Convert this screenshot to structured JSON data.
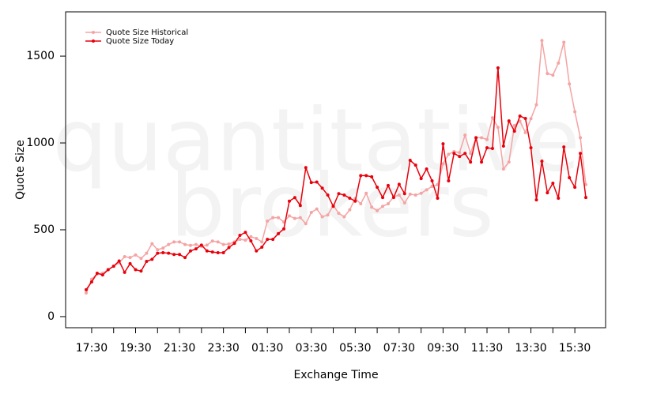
{
  "chart_data": {
    "type": "line",
    "xlabel": "Exchange Time",
    "ylabel": "Quote Size",
    "watermark": [
      "quantitative",
      "brokers"
    ],
    "categories": [
      "17:15",
      "17:30",
      "17:45",
      "18:00",
      "18:15",
      "18:30",
      "18:45",
      "19:00",
      "19:15",
      "19:30",
      "19:45",
      "20:00",
      "20:15",
      "20:30",
      "20:45",
      "21:00",
      "21:15",
      "21:30",
      "21:45",
      "22:00",
      "22:15",
      "22:30",
      "22:45",
      "23:00",
      "23:15",
      "23:30",
      "23:45",
      "00:00",
      "00:15",
      "00:30",
      "00:45",
      "01:00",
      "01:15",
      "01:30",
      "01:45",
      "02:00",
      "02:15",
      "02:30",
      "02:45",
      "03:00",
      "03:15",
      "03:30",
      "03:45",
      "04:00",
      "04:15",
      "04:30",
      "04:45",
      "05:00",
      "05:15",
      "05:30",
      "05:45",
      "06:00",
      "06:15",
      "06:30",
      "06:45",
      "07:00",
      "07:15",
      "07:30",
      "07:45",
      "08:00",
      "08:15",
      "08:30",
      "08:45",
      "09:00",
      "09:15",
      "09:30",
      "09:45",
      "10:00",
      "10:15",
      "10:30",
      "10:45",
      "11:00",
      "11:15",
      "11:30",
      "11:45",
      "12:00",
      "12:15",
      "12:30",
      "12:45",
      "13:00",
      "13:15",
      "13:30",
      "13:45",
      "14:00",
      "14:15",
      "14:30",
      "14:45",
      "15:00",
      "15:15",
      "15:30",
      "15:45",
      "16:00"
    ],
    "xticks": [
      "17:30",
      "19:30",
      "21:30",
      "23:30",
      "01:30",
      "03:30",
      "05:30",
      "07:30",
      "09:30",
      "11:30",
      "13:30",
      "15:30"
    ],
    "ylim": [
      -64,
      1755
    ],
    "yticks": [
      0,
      500,
      1000,
      1500
    ],
    "legend": "top-left",
    "series": [
      {
        "name": "Quote Size Historical",
        "color": "#f5a3a3",
        "values": [
          136,
          215,
          245,
          250,
          270,
          290,
          310,
          345,
          340,
          355,
          335,
          365,
          420,
          385,
          395,
          415,
          430,
          430,
          415,
          410,
          415,
          405,
          412,
          435,
          430,
          415,
          418,
          430,
          445,
          440,
          460,
          450,
          430,
          550,
          570,
          570,
          545,
          580,
          565,
          570,
          535,
          600,
          620,
          575,
          585,
          640,
          595,
          575,
          615,
          680,
          650,
          710,
          630,
          610,
          635,
          650,
          690,
          700,
          655,
          705,
          700,
          710,
          730,
          750,
          760,
          880,
          935,
          950,
          945,
          1045,
          940,
          1030,
          1030,
          1020,
          1145,
          1090,
          850,
          890,
          1100,
          1125,
          1060,
          1140,
          1220,
          1590,
          1400,
          1390,
          1460,
          1580,
          1340,
          1180,
          1030,
          760
        ]
      },
      {
        "name": "Quote Size Today",
        "color": "#e8000b",
        "values": [
          155,
          200,
          250,
          240,
          270,
          290,
          320,
          255,
          305,
          270,
          262,
          318,
          330,
          365,
          368,
          365,
          358,
          358,
          340,
          378,
          390,
          412,
          378,
          372,
          368,
          368,
          398,
          422,
          468,
          485,
          436,
          378,
          400,
          445,
          445,
          478,
          505,
          665,
          685,
          640,
          858,
          772,
          775,
          740,
          700,
          635,
          708,
          700,
          682,
          665,
          812,
          812,
          805,
          745,
          686,
          755,
          686,
          762,
          708,
          900,
          872,
          795,
          850,
          782,
          682,
          995,
          782,
          940,
          922,
          940,
          890,
          1030,
          890,
          972,
          968,
          1432,
          982,
          1127,
          1068,
          1155,
          1141,
          972,
          672,
          895,
          713,
          768,
          682,
          977,
          800,
          745,
          940,
          686
        ]
      }
    ]
  }
}
